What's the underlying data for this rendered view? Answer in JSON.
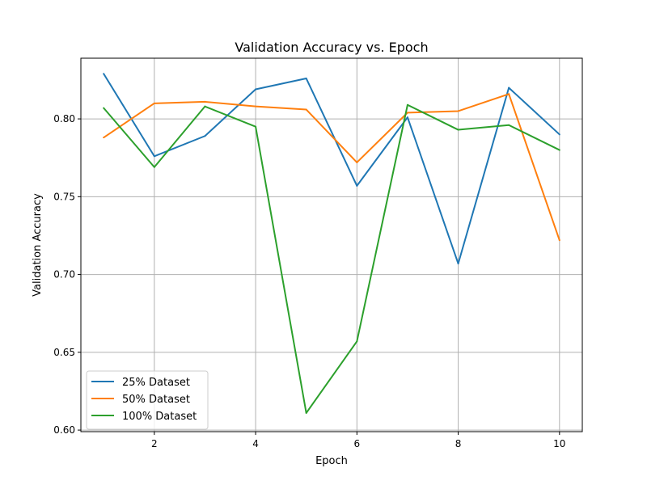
{
  "chart_data": {
    "type": "line",
    "title": "Validation Accuracy vs. Epoch",
    "xlabel": "Epoch",
    "ylabel": "Validation Accuracy",
    "x": [
      1,
      2,
      3,
      4,
      5,
      6,
      7,
      8,
      9,
      10
    ],
    "xlim": [
      0.55,
      10.45
    ],
    "ylim": [
      0.599,
      0.839
    ],
    "xticks": [
      2,
      4,
      6,
      8,
      10
    ],
    "yticks": [
      0.6,
      0.65,
      0.7,
      0.75,
      0.8
    ],
    "xtick_labels": [
      "2",
      "4",
      "6",
      "8",
      "10"
    ],
    "ytick_labels": [
      "0.60",
      "0.65",
      "0.70",
      "0.75",
      "0.80"
    ],
    "grid": true,
    "legend_position": "lower-left",
    "series": [
      {
        "name": "25% Dataset",
        "color": "#1f77b4",
        "values": [
          0.829,
          0.776,
          0.789,
          0.819,
          0.826,
          0.757,
          0.801,
          0.707,
          0.82,
          0.79
        ]
      },
      {
        "name": "50% Dataset",
        "color": "#ff7f0e",
        "values": [
          0.788,
          0.81,
          0.811,
          0.808,
          0.806,
          0.772,
          0.804,
          0.805,
          0.816,
          0.722
        ]
      },
      {
        "name": "100% Dataset",
        "color": "#2ca02c",
        "values": [
          0.807,
          0.769,
          0.808,
          0.795,
          0.611,
          0.657,
          0.809,
          0.793,
          0.796,
          0.78
        ]
      }
    ]
  }
}
